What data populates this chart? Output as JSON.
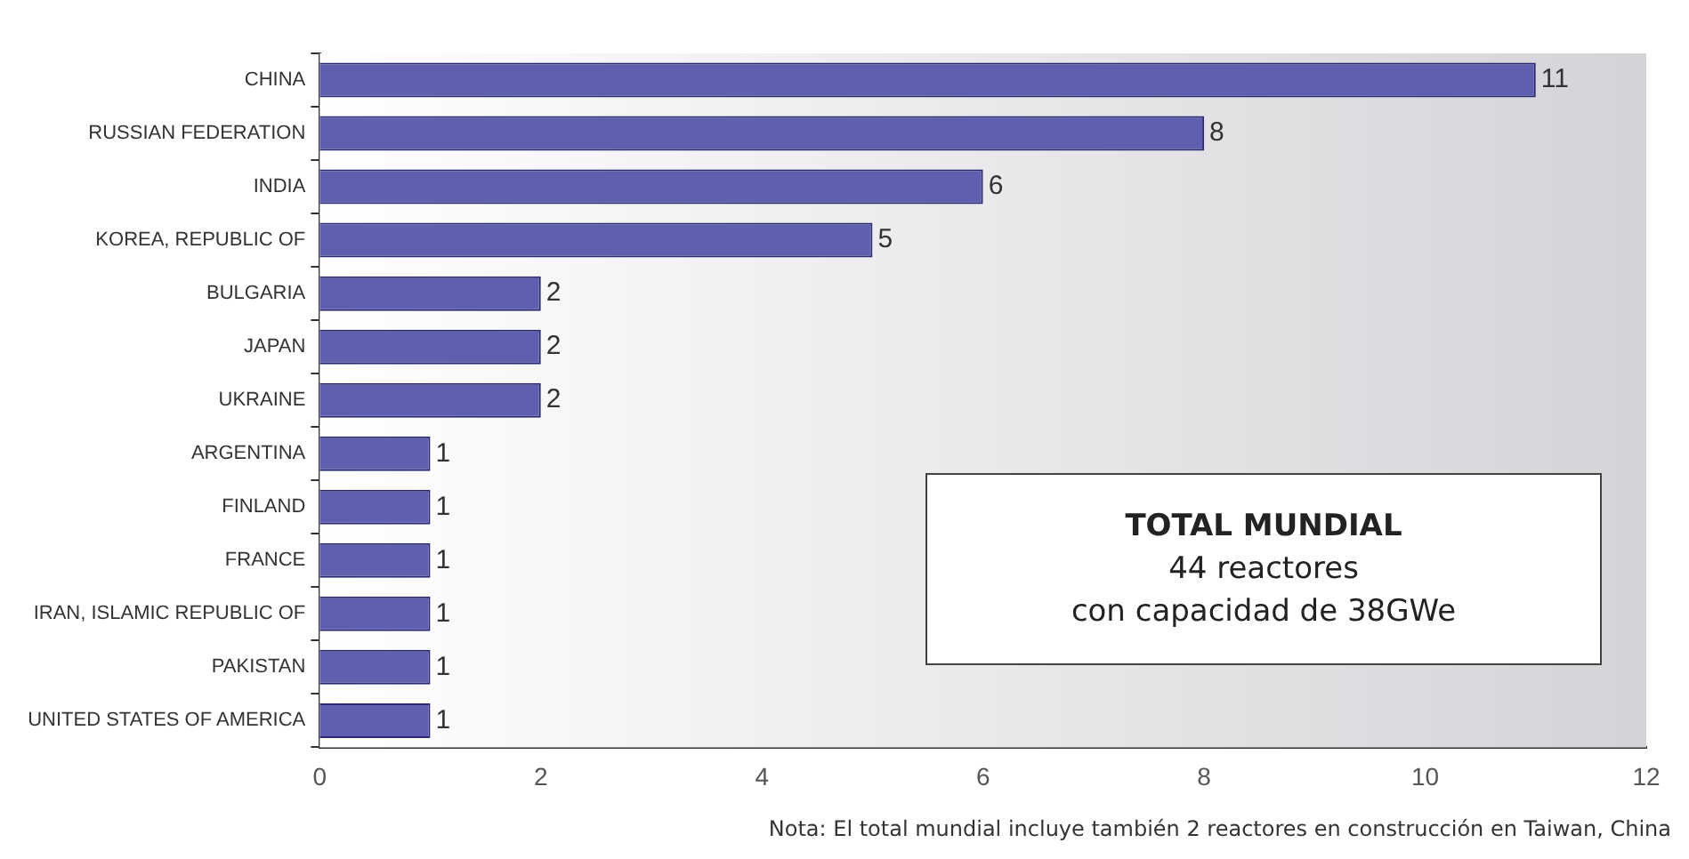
{
  "chart_data": {
    "type": "bar",
    "orientation": "horizontal",
    "categories": [
      "CHINA",
      "RUSSIAN FEDERATION",
      "INDIA",
      "KOREA, REPUBLIC OF",
      "BULGARIA",
      "JAPAN",
      "UKRAINE",
      "ARGENTINA",
      "FINLAND",
      "FRANCE",
      "IRAN, ISLAMIC REPUBLIC OF",
      "PAKISTAN",
      "UNITED STATES OF AMERICA"
    ],
    "values": [
      11,
      8,
      6,
      5,
      2,
      2,
      2,
      1,
      1,
      1,
      1,
      1,
      1
    ],
    "color": "#5f5fb0",
    "xlim": [
      0,
      12
    ],
    "xticks": [
      0,
      2,
      4,
      6,
      8,
      10,
      12
    ],
    "grid": false,
    "legend": false,
    "data_labels": true,
    "annotations": [
      "TOTAL MUNDIAL\n44 reactores\ncon capacidad de 38GWe",
      "Nota: El total mundial incluye también 2 reactores en construcción en Taiwan, China"
    ]
  }
}
